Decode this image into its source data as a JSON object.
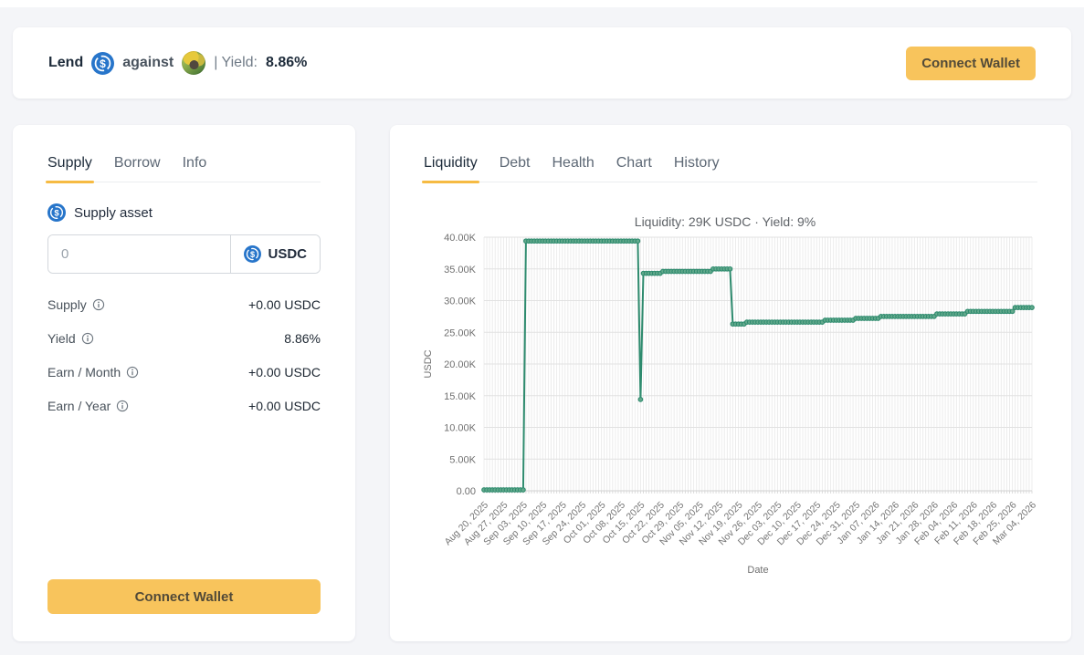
{
  "theme": {
    "background": "#f4f5f8",
    "card_bg": "#ffffff",
    "accent_yellow": "#f8c45c",
    "tab_underline": "#f6bb43",
    "usdc_blue": "#2775ca",
    "chart_line": "#2e8b6e"
  },
  "header": {
    "lend_label": "Lend",
    "against_label": "against",
    "yield_label": "| Yield:",
    "yield_value": "8.86%",
    "connect_wallet_label": "Connect Wallet"
  },
  "supply_panel": {
    "tabs": [
      {
        "label": "Supply",
        "active": true
      },
      {
        "label": "Borrow",
        "active": false
      },
      {
        "label": "Info",
        "active": false
      }
    ],
    "asset_section_label": "Supply asset",
    "amount_input": {
      "value": "",
      "placeholder": "0"
    },
    "token_selector": {
      "label": "USDC"
    },
    "stats": [
      {
        "label": "Supply",
        "value": "+0.00 USDC"
      },
      {
        "label": "Yield",
        "value": "8.86%"
      },
      {
        "label": "Earn / Month",
        "value": "+0.00 USDC"
      },
      {
        "label": "Earn / Year",
        "value": "+0.00 USDC"
      }
    ],
    "connect_wallet_label": "Connect Wallet"
  },
  "chart_panel": {
    "tabs": [
      {
        "label": "Liquidity",
        "active": true
      },
      {
        "label": "Debt",
        "active": false
      },
      {
        "label": "Health",
        "active": false
      },
      {
        "label": "Chart",
        "active": false
      },
      {
        "label": "History",
        "active": false
      }
    ]
  },
  "chart_data": {
    "type": "line",
    "title": "Liquidity: 29K USDC · Yield: 9%",
    "xlabel": "Date",
    "ylabel": "USDC",
    "series_name": "Liquidity (USDC)",
    "ylim": [
      0,
      40000
    ],
    "y_tick_step": 5000,
    "y_ticks": [
      "0.00",
      "5.00K",
      "10.00K",
      "15.00K",
      "20.00K",
      "25.00K",
      "30.00K",
      "35.00K",
      "40.00K"
    ],
    "x_ticks": [
      "Aug 20, 2025",
      "Aug 27, 2025",
      "Sep 03, 2025",
      "Sep 10, 2025",
      "Sep 17, 2025",
      "Sep 24, 2025",
      "Oct 01, 2025",
      "Oct 08, 2025",
      "Oct 15, 2025",
      "Oct 22, 2025",
      "Oct 29, 2025",
      "Nov 05, 2025",
      "Nov 12, 2025",
      "Nov 19, 2025",
      "Nov 26, 2025",
      "Dec 03, 2025",
      "Dec 10, 2025",
      "Dec 17, 2025",
      "Dec 24, 2025",
      "Dec 31, 2025",
      "Jan 07, 2026",
      "Jan 14, 2026",
      "Jan 21, 2026",
      "Jan 28, 2026",
      "Feb 04, 2026",
      "Feb 11, 2026",
      "Feb 18, 2026",
      "Feb 25, 2026",
      "Mar 04, 2026"
    ],
    "x_tick_interval_days": 7,
    "grid": true,
    "legend": "none",
    "line_color": "#2e8b6e",
    "marker_fill": "#63a98c",
    "segments": [
      {
        "start": "Aug 20, 2025",
        "end": "Sep 03, 2025",
        "from_day": 0,
        "to_day": 14,
        "value": 150
      },
      {
        "start": "Sep 04, 2025",
        "end": "Oct 14, 2025",
        "from_day": 15,
        "to_day": 55,
        "value": 39400
      },
      {
        "start": "Oct 15, 2025",
        "end": "Oct 15, 2025",
        "from_day": 56,
        "to_day": 56,
        "value": 14400
      },
      {
        "start": "Oct 16, 2025",
        "end": "Oct 22, 2025",
        "from_day": 57,
        "to_day": 63,
        "value": 34300
      },
      {
        "start": "Oct 23, 2025",
        "end": "Nov 09, 2025",
        "from_day": 64,
        "to_day": 81,
        "value": 34600
      },
      {
        "start": "Nov 10, 2025",
        "end": "Nov 16, 2025",
        "from_day": 82,
        "to_day": 88,
        "value": 35000
      },
      {
        "start": "Nov 17, 2025",
        "end": "Nov 21, 2025",
        "from_day": 89,
        "to_day": 93,
        "value": 26300
      },
      {
        "start": "Nov 22, 2025",
        "end": "Dec 19, 2025",
        "from_day": 94,
        "to_day": 121,
        "value": 26600
      },
      {
        "start": "Dec 20, 2025",
        "end": "Dec 30, 2025",
        "from_day": 122,
        "to_day": 132,
        "value": 26900
      },
      {
        "start": "Dec 31, 2025",
        "end": "Jan 08, 2026",
        "from_day": 133,
        "to_day": 141,
        "value": 27200
      },
      {
        "start": "Jan 09, 2026",
        "end": "Jan 28, 2026",
        "from_day": 142,
        "to_day": 161,
        "value": 27500
      },
      {
        "start": "Jan 29, 2026",
        "end": "Feb 08, 2026",
        "from_day": 162,
        "to_day": 172,
        "value": 27900
      },
      {
        "start": "Feb 09, 2026",
        "end": "Feb 25, 2026",
        "from_day": 173,
        "to_day": 189,
        "value": 28300
      },
      {
        "start": "Feb 26, 2026",
        "end": "Mar 04, 2026",
        "from_day": 190,
        "to_day": 196,
        "value": 28900
      }
    ]
  }
}
